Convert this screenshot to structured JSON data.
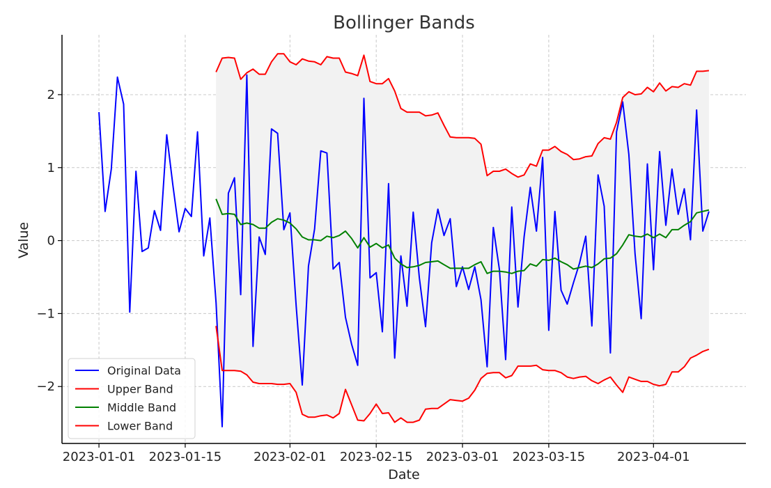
{
  "chart_data": {
    "type": "line",
    "title": "Bollinger Bands",
    "xlabel": "Date",
    "ylabel": "Value",
    "x_start": "2023-01-01",
    "x_end": "2023-04-10",
    "xlim": [
      "2022-12-26",
      "2023-04-16"
    ],
    "ylim": [
      -2.78,
      2.82
    ],
    "x_ticks": [
      "2023-01-01",
      "2023-01-15",
      "2023-02-01",
      "2023-02-15",
      "2023-03-01",
      "2023-03-15",
      "2023-04-01"
    ],
    "y_ticks": [
      -2,
      -1,
      0,
      1,
      2
    ],
    "y_tick_labels": [
      "−2",
      "−1",
      "0",
      "1",
      "2"
    ],
    "grid": true,
    "legend_position": "lower-left",
    "band_fill": "#f2f2f2",
    "series": [
      {
        "name": "Original Data",
        "color": "#0000ff",
        "start": "2023-01-01",
        "values": [
          1.76,
          0.4,
          0.98,
          2.24,
          1.87,
          -0.98,
          0.95,
          -0.15,
          -0.1,
          0.41,
          0.14,
          1.45,
          0.76,
          0.12,
          0.44,
          0.33,
          1.49,
          -0.21,
          0.31,
          -0.85,
          -2.55,
          0.65,
          0.86,
          -0.74,
          2.27,
          -1.45,
          0.05,
          -0.19,
          1.53,
          1.47,
          0.15,
          0.38,
          -0.89,
          -1.98,
          -0.35,
          0.16,
          1.23,
          1.2,
          -0.39,
          -0.3,
          -1.05,
          -1.42,
          -1.71,
          1.95,
          -0.51,
          -0.44,
          -1.25,
          0.78,
          -1.61,
          -0.21,
          -0.9,
          0.39,
          -0.51,
          -1.18,
          -0.03,
          0.43,
          0.07,
          0.3,
          -0.63,
          -0.36,
          -0.67,
          -0.36,
          -0.81,
          -1.73,
          0.18,
          -0.4,
          -1.63,
          0.46,
          -0.91,
          0.05,
          0.73,
          0.13,
          1.14,
          -1.23,
          0.4,
          -0.68,
          -0.87,
          -0.58,
          -0.31,
          0.06,
          -1.17,
          0.9,
          0.47,
          -1.54,
          1.49,
          1.9,
          1.18,
          -0.18,
          -1.07,
          1.05,
          -0.4,
          1.22,
          0.21,
          0.98,
          0.36,
          0.71,
          0.01,
          1.79,
          0.13,
          0.4
        ]
      },
      {
        "name": "Upper Band",
        "color": "#ff0000",
        "start": "2023-01-20",
        "values": [
          2.31,
          2.5,
          2.51,
          2.5,
          2.21,
          2.3,
          2.35,
          2.28,
          2.28,
          2.45,
          2.56,
          2.56,
          2.45,
          2.41,
          2.49,
          2.46,
          2.45,
          2.41,
          2.52,
          2.5,
          2.5,
          2.31,
          2.29,
          2.26,
          2.54,
          2.18,
          2.15,
          2.15,
          2.22,
          2.05,
          1.81,
          1.76,
          1.76,
          1.76,
          1.71,
          1.72,
          1.75,
          1.58,
          1.42,
          1.41,
          1.41,
          1.41,
          1.4,
          1.32,
          0.89,
          0.95,
          0.95,
          0.98,
          0.92,
          0.87,
          0.9,
          1.05,
          1.02,
          1.24,
          1.24,
          1.29,
          1.22,
          1.18,
          1.11,
          1.12,
          1.15,
          1.16,
          1.33,
          1.41,
          1.39,
          1.62,
          1.96,
          2.04,
          2.0,
          2.01,
          2.1,
          2.04,
          2.16,
          2.05,
          2.11,
          2.1,
          2.15,
          2.13,
          2.32,
          2.32,
          2.33
        ]
      },
      {
        "name": "Middle Band",
        "color": "#008000",
        "start": "2023-01-20",
        "values": [
          0.57,
          0.36,
          0.37,
          0.36,
          0.22,
          0.24,
          0.22,
          0.17,
          0.17,
          0.25,
          0.3,
          0.28,
          0.24,
          0.16,
          0.05,
          0.01,
          0.01,
          0.0,
          0.06,
          0.04,
          0.07,
          0.13,
          0.03,
          -0.1,
          0.04,
          -0.09,
          -0.04,
          -0.1,
          -0.06,
          -0.24,
          -0.32,
          -0.37,
          -0.36,
          -0.34,
          -0.3,
          -0.29,
          -0.28,
          -0.33,
          -0.38,
          -0.38,
          -0.38,
          -0.38,
          -0.33,
          -0.29,
          -0.45,
          -0.42,
          -0.42,
          -0.43,
          -0.45,
          -0.42,
          -0.41,
          -0.32,
          -0.35,
          -0.26,
          -0.27,
          -0.24,
          -0.29,
          -0.33,
          -0.39,
          -0.37,
          -0.35,
          -0.37,
          -0.32,
          -0.25,
          -0.24,
          -0.18,
          -0.06,
          0.08,
          0.06,
          0.05,
          0.09,
          0.04,
          0.09,
          0.04,
          0.15,
          0.15,
          0.21,
          0.26,
          0.38,
          0.4,
          0.42
        ]
      },
      {
        "name": "Lower Band",
        "color": "#ff0000",
        "start": "2023-01-20",
        "values": [
          -1.17,
          -1.78,
          -1.78,
          -1.78,
          -1.79,
          -1.84,
          -1.94,
          -1.96,
          -1.96,
          -1.96,
          -1.97,
          -1.97,
          -1.96,
          -2.08,
          -2.38,
          -2.42,
          -2.42,
          -2.4,
          -2.39,
          -2.43,
          -2.37,
          -2.04,
          -2.25,
          -2.46,
          -2.47,
          -2.37,
          -2.24,
          -2.37,
          -2.36,
          -2.49,
          -2.43,
          -2.49,
          -2.49,
          -2.46,
          -2.31,
          -2.3,
          -2.3,
          -2.24,
          -2.18,
          -2.19,
          -2.2,
          -2.16,
          -2.05,
          -1.89,
          -1.82,
          -1.81,
          -1.81,
          -1.88,
          -1.85,
          -1.72,
          -1.72,
          -1.72,
          -1.71,
          -1.77,
          -1.78,
          -1.78,
          -1.81,
          -1.87,
          -1.89,
          -1.87,
          -1.86,
          -1.92,
          -1.96,
          -1.91,
          -1.87,
          -1.98,
          -2.08,
          -1.87,
          -1.9,
          -1.93,
          -1.93,
          -1.97,
          -1.99,
          -1.97,
          -1.8,
          -1.8,
          -1.73,
          -1.61,
          -1.57,
          -1.52,
          -1.49
        ]
      }
    ]
  }
}
